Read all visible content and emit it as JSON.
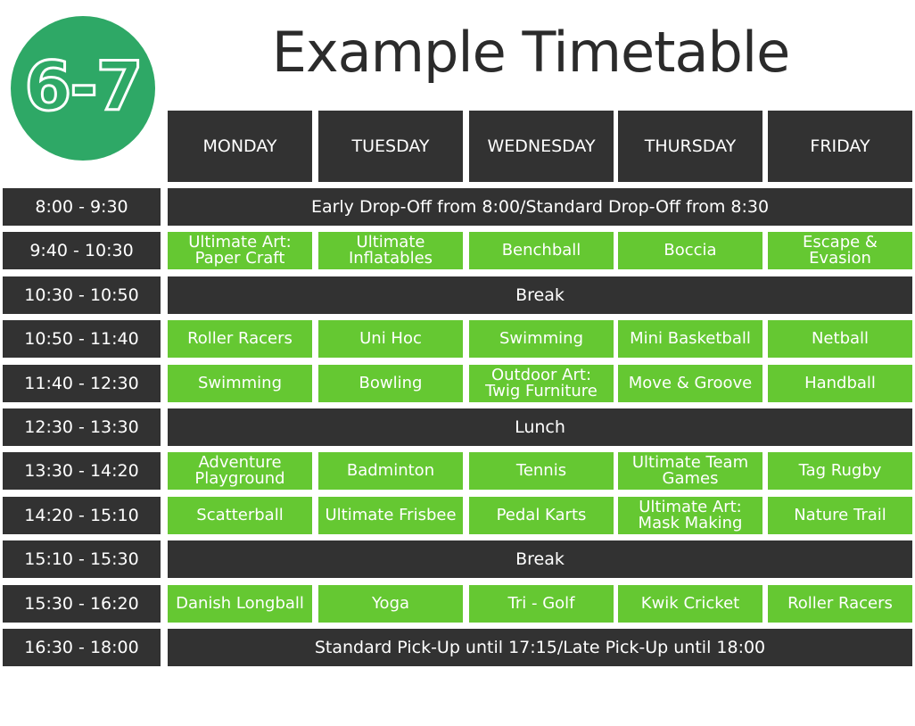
{
  "logo": {
    "text": "6-7",
    "color": "#2ea866"
  },
  "title": "Example Timetable",
  "colors": {
    "dark": "#323232",
    "activity": "#65c832",
    "badge": "#2ea866"
  },
  "days": [
    "MONDAY",
    "TUESDAY",
    "WEDNESDAY",
    "THURSDAY",
    "FRIDAY"
  ],
  "rows": [
    {
      "time": "8:00 - 9:30",
      "span": "Early Drop-Off from 8:00/Standard Drop-Off from 8:30"
    },
    {
      "time": "9:40 - 10:30",
      "activities": [
        "Ultimate Art: Paper Craft",
        "Ultimate Inflatables",
        "Benchball",
        "Boccia",
        "Escape & Evasion"
      ]
    },
    {
      "time": "10:30 - 10:50",
      "span": "Break"
    },
    {
      "time": "10:50 - 11:40",
      "activities": [
        "Roller Racers",
        "Uni Hoc",
        "Swimming",
        "Mini Basketball",
        "Netball"
      ]
    },
    {
      "time": "11:40 - 12:30",
      "activities": [
        "Swimming",
        "Bowling",
        "Outdoor Art: Twig Furniture",
        "Move & Groove",
        "Handball"
      ]
    },
    {
      "time": "12:30 - 13:30",
      "span": "Lunch"
    },
    {
      "time": "13:30 - 14:20",
      "activities": [
        "Adventure Playground",
        "Badminton",
        "Tennis",
        "Ultimate Team Games",
        "Tag Rugby"
      ]
    },
    {
      "time": "14:20 - 15:10",
      "activities": [
        "Scatterball",
        "Ultimate Frisbee",
        "Pedal Karts",
        "Ultimate Art: Mask Making",
        "Nature Trail"
      ]
    },
    {
      "time": "15:10 - 15:30",
      "span": "Break"
    },
    {
      "time": "15:30 - 16:20",
      "activities": [
        "Danish Longball",
        "Yoga",
        "Tri - Golf",
        "Kwik Cricket",
        "Roller Racers"
      ]
    },
    {
      "time": "16:30 - 18:00",
      "span": "Standard Pick-Up until 17:15/Late Pick-Up until 18:00"
    }
  ]
}
